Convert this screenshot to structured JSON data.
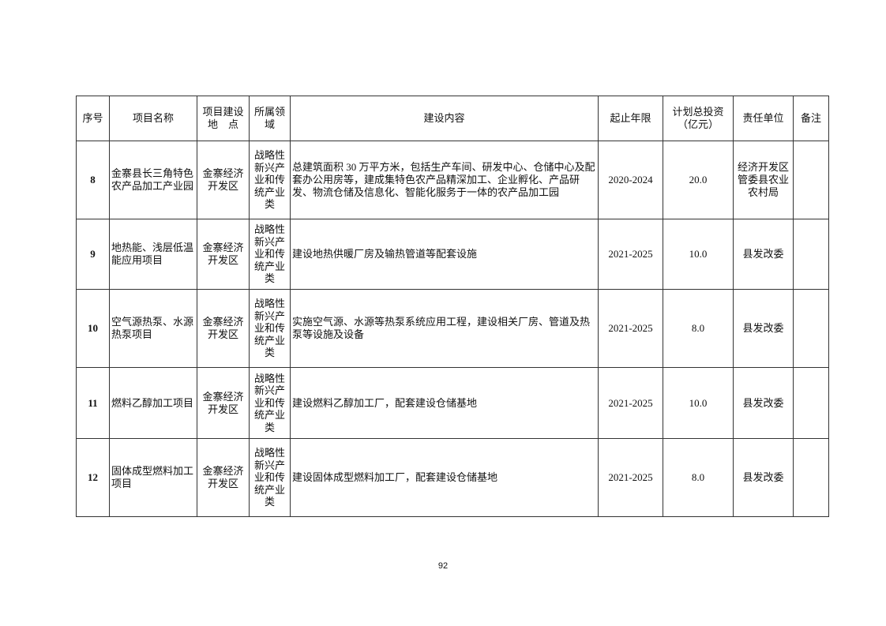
{
  "table": {
    "headers": [
      "序号",
      "项目名称",
      "项目建设地　点",
      "所属领域",
      "建设内容",
      "起止年限",
      "计划总投资（亿元）",
      "责任单位",
      "备注"
    ],
    "rows": [
      {
        "no": "8",
        "name": "金寨县长三角特色农产品加工产业园",
        "location": "金寨经济开发区",
        "field": "战略性新兴产业和传统产业类",
        "content": "总建筑面积 30 万平方米，包括生产车间、研发中心、仓储中心及配套办公用房等，建成集特色农产品精深加工、企业孵化、产品研发、物流仓储及信息化、智能化服务于一体的农产品加工园",
        "period": "2020-2024",
        "investment": "20.0",
        "unit": "经济开发区管委县农业农村局",
        "remark": ""
      },
      {
        "no": "9",
        "name": "地热能、浅层低温能应用项目",
        "location": "金寨经济开发区",
        "field": "战略性新兴产业和传统产业类",
        "content": "建设地热供暖厂房及输热管道等配套设施",
        "period": "2021-2025",
        "investment": "10.0",
        "unit": "县发改委",
        "remark": ""
      },
      {
        "no": "10",
        "name": "空气源热泵、水源热泵项目",
        "location": "金寨经济开发区",
        "field": "战略性新兴产业和传统产业类",
        "content": "实施空气源、水源等热泵系统应用工程，建设相关厂房、管道及热泵等设施及设备",
        "period": "2021-2025",
        "investment": "8.0",
        "unit": "县发改委",
        "remark": ""
      },
      {
        "no": "11",
        "name": "燃料乙醇加工项目",
        "location": "金寨经济开发区",
        "field": "战略性新兴产业和传统产业类",
        "content": "建设燃料乙醇加工厂，配套建设仓储基地",
        "period": "2021-2025",
        "investment": "10.0",
        "unit": "县发改委",
        "remark": ""
      },
      {
        "no": "12",
        "name": "固体成型燃料加工项目",
        "location": "金寨经济开发区",
        "field": "战略性新兴产业和传统产业类",
        "content": "建设固体成型燃料加工厂，配套建设仓储基地",
        "period": "2021-2025",
        "investment": "8.0",
        "unit": "县发改委",
        "remark": ""
      }
    ]
  },
  "page_number": "92"
}
